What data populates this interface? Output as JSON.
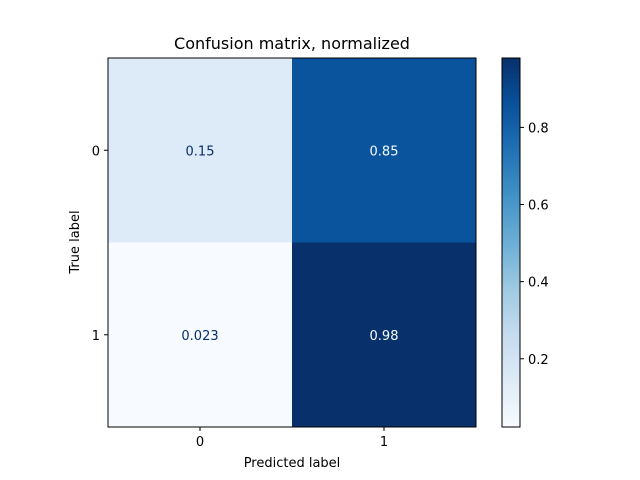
{
  "chart_data": {
    "type": "heatmap",
    "title": "Confusion matrix, normalized",
    "xlabel": "Predicted label",
    "ylabel": "True label",
    "x_categories": [
      "0",
      "1"
    ],
    "y_categories": [
      "0",
      "1"
    ],
    "values": [
      [
        0.15,
        0.85
      ],
      [
        0.023,
        0.98
      ]
    ],
    "cell_labels": [
      [
        "0.15",
        "0.85"
      ],
      [
        "0.023",
        "0.98"
      ]
    ],
    "colormap": "Blues",
    "colorbar": {
      "range": [
        0.023,
        0.98
      ],
      "ticks": [
        "0.2",
        "0.4",
        "0.6",
        "0.8"
      ],
      "tick_values": [
        0.2,
        0.4,
        0.6,
        0.8
      ]
    },
    "colors": {
      "low": "#f7fbff",
      "high": "#08306b",
      "dark_text": "#08306b",
      "light_text": "#f7fbff"
    }
  }
}
